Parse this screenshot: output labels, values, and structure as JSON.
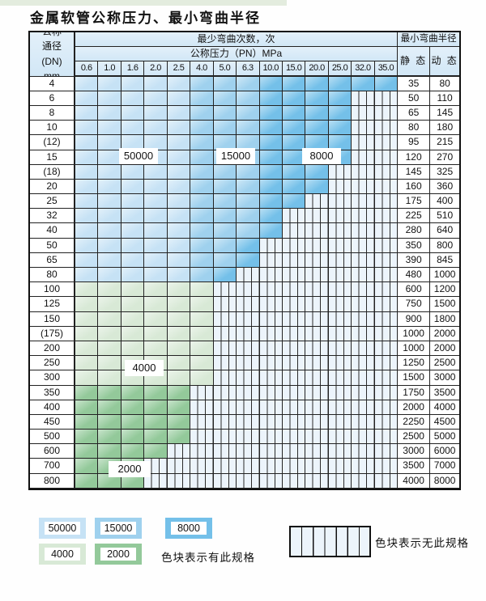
{
  "title": "金属软管公称压力、最小弯曲半径",
  "table": {
    "corner": "公称\n通径\n(DN)\nmm",
    "bend_cycles_header": "最少弯曲次数，次",
    "pressure_header": "公称压力（PN）MPa",
    "radius_header": "最小弯曲半径",
    "static_label": "静 态",
    "dynamic_label": "动 态",
    "pressures": [
      "0.6",
      "1.0",
      "1.6",
      "2.0",
      "2.5",
      "4.0",
      "5.0",
      "6.3",
      "10.0",
      "15.0",
      "20.0",
      "25.0",
      "32.0",
      "35.0"
    ],
    "rows": [
      {
        "dn": "4",
        "cells": [
          "50",
          "50",
          "50",
          "50",
          "50",
          "15",
          "15",
          "15",
          "80",
          "80",
          "80",
          "80",
          "80",
          "80"
        ],
        "static": "35",
        "dynamic": "80"
      },
      {
        "dn": "6",
        "cells": [
          "50",
          "50",
          "50",
          "50",
          "50",
          "15",
          "15",
          "15",
          "80",
          "80",
          "80",
          "80",
          "S",
          "S"
        ],
        "static": "50",
        "dynamic": "110"
      },
      {
        "dn": "8",
        "cells": [
          "50",
          "50",
          "50",
          "50",
          "50",
          "15",
          "15",
          "15",
          "80",
          "80",
          "80",
          "80",
          "S",
          "S"
        ],
        "static": "65",
        "dynamic": "145"
      },
      {
        "dn": "10",
        "cells": [
          "50",
          "50",
          "50",
          "50",
          "50",
          "15",
          "15",
          "15",
          "80",
          "80",
          "80",
          "80",
          "S",
          "S"
        ],
        "static": "80",
        "dynamic": "180"
      },
      {
        "dn": "(12)",
        "cells": [
          "50",
          "50",
          "50",
          "50",
          "50",
          "15",
          "15",
          "15",
          "80",
          "80",
          "80",
          "80",
          "S",
          "S"
        ],
        "static": "95",
        "dynamic": "215"
      },
      {
        "dn": "15",
        "cells": [
          "50",
          "50",
          "50",
          "50",
          "50",
          "15",
          "15",
          "15",
          "80",
          "80",
          "80",
          "80",
          "S",
          "S"
        ],
        "static": "120",
        "dynamic": "270"
      },
      {
        "dn": "(18)",
        "cells": [
          "50",
          "50",
          "50",
          "50",
          "50",
          "15",
          "15",
          "15",
          "80",
          "80",
          "80",
          "S",
          "S",
          "S"
        ],
        "static": "145",
        "dynamic": "325"
      },
      {
        "dn": "20",
        "cells": [
          "50",
          "50",
          "50",
          "50",
          "50",
          "15",
          "15",
          "15",
          "80",
          "80",
          "80",
          "S",
          "S",
          "S"
        ],
        "static": "160",
        "dynamic": "360"
      },
      {
        "dn": "25",
        "cells": [
          "50",
          "50",
          "50",
          "50",
          "50",
          "15",
          "15",
          "15",
          "80",
          "80",
          "S",
          "S",
          "S",
          "S"
        ],
        "static": "175",
        "dynamic": "400"
      },
      {
        "dn": "32",
        "cells": [
          "50",
          "50",
          "50",
          "50",
          "50",
          "15",
          "15",
          "15",
          "80",
          "S",
          "S",
          "S",
          "S",
          "S"
        ],
        "static": "225",
        "dynamic": "510"
      },
      {
        "dn": "40",
        "cells": [
          "50",
          "50",
          "50",
          "50",
          "50",
          "15",
          "15",
          "15",
          "80",
          "S",
          "S",
          "S",
          "S",
          "S"
        ],
        "static": "280",
        "dynamic": "640"
      },
      {
        "dn": "50",
        "cells": [
          "50",
          "50",
          "50",
          "50",
          "50",
          "15",
          "15",
          "80",
          "S",
          "S",
          "S",
          "S",
          "S",
          "S"
        ],
        "static": "350",
        "dynamic": "800"
      },
      {
        "dn": "65",
        "cells": [
          "50",
          "50",
          "50",
          "50",
          "50",
          "15",
          "15",
          "80",
          "S",
          "S",
          "S",
          "S",
          "S",
          "S"
        ],
        "static": "390",
        "dynamic": "845"
      },
      {
        "dn": "80",
        "cells": [
          "50",
          "50",
          "50",
          "50",
          "50",
          "15",
          "80",
          "S",
          "S",
          "S",
          "S",
          "S",
          "S",
          "S"
        ],
        "static": "480",
        "dynamic": "1000"
      },
      {
        "dn": "100",
        "cells": [
          "40",
          "40",
          "40",
          "40",
          "40",
          "40",
          "S",
          "S",
          "S",
          "S",
          "S",
          "S",
          "S",
          "S"
        ],
        "static": "600",
        "dynamic": "1200"
      },
      {
        "dn": "125",
        "cells": [
          "40",
          "40",
          "40",
          "40",
          "40",
          "40",
          "S",
          "S",
          "S",
          "S",
          "S",
          "S",
          "S",
          "S"
        ],
        "static": "750",
        "dynamic": "1500"
      },
      {
        "dn": "150",
        "cells": [
          "40",
          "40",
          "40",
          "40",
          "40",
          "40",
          "S",
          "S",
          "S",
          "S",
          "S",
          "S",
          "S",
          "S"
        ],
        "static": "900",
        "dynamic": "1800"
      },
      {
        "dn": "(175)",
        "cells": [
          "40",
          "40",
          "40",
          "40",
          "40",
          "40",
          "S",
          "S",
          "S",
          "S",
          "S",
          "S",
          "S",
          "S"
        ],
        "static": "1000",
        "dynamic": "2000"
      },
      {
        "dn": "200",
        "cells": [
          "40",
          "40",
          "40",
          "40",
          "40",
          "40",
          "S",
          "S",
          "S",
          "S",
          "S",
          "S",
          "S",
          "S"
        ],
        "static": "1000",
        "dynamic": "2000"
      },
      {
        "dn": "250",
        "cells": [
          "40",
          "40",
          "40",
          "40",
          "40",
          "40",
          "S",
          "S",
          "S",
          "S",
          "S",
          "S",
          "S",
          "S"
        ],
        "static": "1250",
        "dynamic": "2500"
      },
      {
        "dn": "300",
        "cells": [
          "40",
          "40",
          "40",
          "40",
          "40",
          "40",
          "S",
          "S",
          "S",
          "S",
          "S",
          "S",
          "S",
          "S"
        ],
        "static": "1500",
        "dynamic": "3000"
      },
      {
        "dn": "350",
        "cells": [
          "20",
          "20",
          "20",
          "20",
          "20",
          "S",
          "S",
          "S",
          "S",
          "S",
          "S",
          "S",
          "S",
          "S"
        ],
        "static": "1750",
        "dynamic": "3500"
      },
      {
        "dn": "400",
        "cells": [
          "20",
          "20",
          "20",
          "20",
          "20",
          "S",
          "S",
          "S",
          "S",
          "S",
          "S",
          "S",
          "S",
          "S"
        ],
        "static": "2000",
        "dynamic": "4000"
      },
      {
        "dn": "450",
        "cells": [
          "20",
          "20",
          "20",
          "20",
          "20",
          "S",
          "S",
          "S",
          "S",
          "S",
          "S",
          "S",
          "S",
          "S"
        ],
        "static": "2250",
        "dynamic": "4500"
      },
      {
        "dn": "500",
        "cells": [
          "20",
          "20",
          "20",
          "20",
          "20",
          "S",
          "S",
          "S",
          "S",
          "S",
          "S",
          "S",
          "S",
          "S"
        ],
        "static": "2500",
        "dynamic": "5000"
      },
      {
        "dn": "600",
        "cells": [
          "20",
          "20",
          "20",
          "20",
          "S",
          "S",
          "S",
          "S",
          "S",
          "S",
          "S",
          "S",
          "S",
          "S"
        ],
        "static": "3000",
        "dynamic": "6000"
      },
      {
        "dn": "700",
        "cells": [
          "20",
          "20",
          "20",
          "S",
          "S",
          "S",
          "S",
          "S",
          "S",
          "S",
          "S",
          "S",
          "S",
          "S"
        ],
        "static": "3500",
        "dynamic": "7000"
      },
      {
        "dn": "800",
        "cells": [
          "20",
          "20",
          "20",
          "S",
          "S",
          "S",
          "S",
          "S",
          "S",
          "S",
          "S",
          "S",
          "S",
          "S"
        ],
        "static": "4000",
        "dynamic": "8000"
      }
    ]
  },
  "overlay_labels": {
    "l50000": "50000",
    "l15000": "15000",
    "l8000": "8000",
    "l4000": "4000",
    "l2000": "2000"
  },
  "legend": {
    "l50000": "50000",
    "l15000": "15000",
    "l8000": "8000",
    "l4000": "4000",
    "l2000": "2000",
    "has_spec_text": "色块表示有此规格",
    "no_spec_text": "色块表示无此规格"
  },
  "colors": {
    "blue_50000": "#c6e2f5",
    "blue_15000": "#9fd1ee",
    "blue_8000": "#74c0e9",
    "green_4000": "#d8e9d6",
    "green_2000": "#93c99a",
    "empty_cell": "#ecf4fb",
    "grid_line": "#222222"
  }
}
